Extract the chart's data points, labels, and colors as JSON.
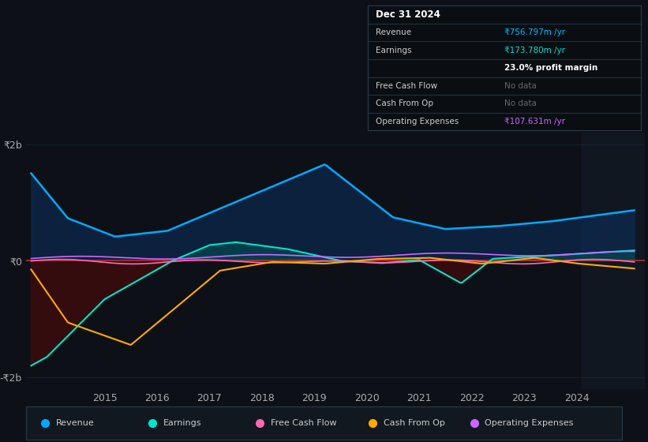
{
  "bg_color": "#0d1117",
  "plot_bg_color": "#0d1117",
  "x_ticks": [
    2015,
    2016,
    2017,
    2018,
    2019,
    2020,
    2021,
    2022,
    2023,
    2024
  ],
  "x_lim": [
    2013.5,
    2025.3
  ],
  "y_lim": [
    -2200,
    2200
  ],
  "y_ticks_labels": [
    "₹2b",
    "₹0",
    "-₹2b"
  ],
  "y_ticks_values": [
    2000,
    0,
    -2000
  ],
  "zero_line_color": "#cc3333",
  "grid_color": "#1e2d3d",
  "revenue_color": "#00aaff",
  "revenue_fill": "#0a3060",
  "earnings_color": "#00e5cc",
  "earnings_fill_pos": "#005555",
  "earnings_fill_neg": "#4a0a0a",
  "fcf_color": "#ff69b4",
  "cash_op_color": "#ffaa00",
  "opex_color": "#cc66ff",
  "legend_bg": "#111820",
  "legend_border": "#2a3a4a",
  "info_bg": "#0a0e13",
  "info_border": "#2a3a4a",
  "overlay_color": "#1a2332",
  "revenue_label": "Revenue",
  "earnings_label": "Earnings",
  "fcf_label": "Free Cash Flow",
  "cash_op_label": "Cash From Op",
  "opex_label": "Operating Expenses",
  "info_title": "Dec 31 2024",
  "info_revenue": "₹756.797m /yr",
  "info_revenue_color": "#00bfff",
  "info_earnings": "₹173.780m /yr",
  "info_earnings_color": "#00e5cc",
  "info_margin": "23.0% profit margin",
  "info_nodata": "No data",
  "info_nodata_color": "#666666",
  "info_opex": "₹107.631m /yr",
  "info_opex_color": "#cc66ff"
}
